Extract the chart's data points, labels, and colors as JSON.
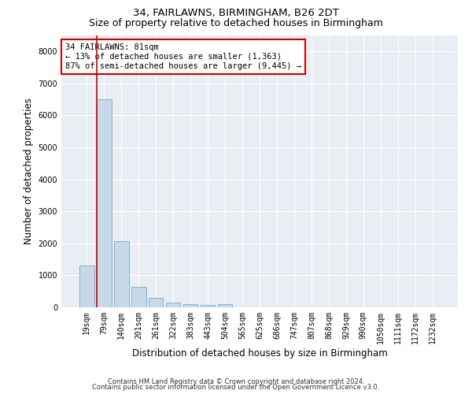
{
  "title": "34, FAIRLAWNS, BIRMINGHAM, B26 2DT",
  "subtitle": "Size of property relative to detached houses in Birmingham",
  "xlabel": "Distribution of detached houses by size in Birmingham",
  "ylabel": "Number of detached properties",
  "footnote1": "Contains HM Land Registry data © Crown copyright and database right 2024.",
  "footnote2": "Contains public sector information licensed under the Open Government Licence v3.0.",
  "annotation_title": "34 FAIRLAWNS: 81sqm",
  "annotation_line1": "← 13% of detached houses are smaller (1,363)",
  "annotation_line2": "87% of semi-detached houses are larger (9,445) →",
  "bar_color": "#c8d8e8",
  "bar_edge_color": "#7aaabf",
  "marker_line_color": "#cc0000",
  "annotation_box_edge_color": "#cc0000",
  "background_color": "#e8eef4",
  "grid_color": "#ffffff",
  "categories": [
    "19sqm",
    "79sqm",
    "140sqm",
    "201sqm",
    "261sqm",
    "322sqm",
    "383sqm",
    "443sqm",
    "504sqm",
    "565sqm",
    "625sqm",
    "686sqm",
    "747sqm",
    "807sqm",
    "868sqm",
    "929sqm",
    "990sqm",
    "1050sqm",
    "1111sqm",
    "1172sqm",
    "1232sqm"
  ],
  "values": [
    1300,
    6500,
    2080,
    640,
    290,
    155,
    110,
    75,
    110,
    0,
    0,
    0,
    0,
    0,
    0,
    0,
    0,
    0,
    0,
    0,
    0
  ],
  "ylim": [
    0,
    8500
  ],
  "yticks": [
    0,
    1000,
    2000,
    3000,
    4000,
    5000,
    6000,
    7000,
    8000
  ],
  "marker_bin_index": 1,
  "title_fontsize": 9.5,
  "subtitle_fontsize": 9,
  "axis_label_fontsize": 8.5,
  "tick_fontsize": 7,
  "annotation_fontsize": 7.5,
  "footnote_fontsize": 6
}
